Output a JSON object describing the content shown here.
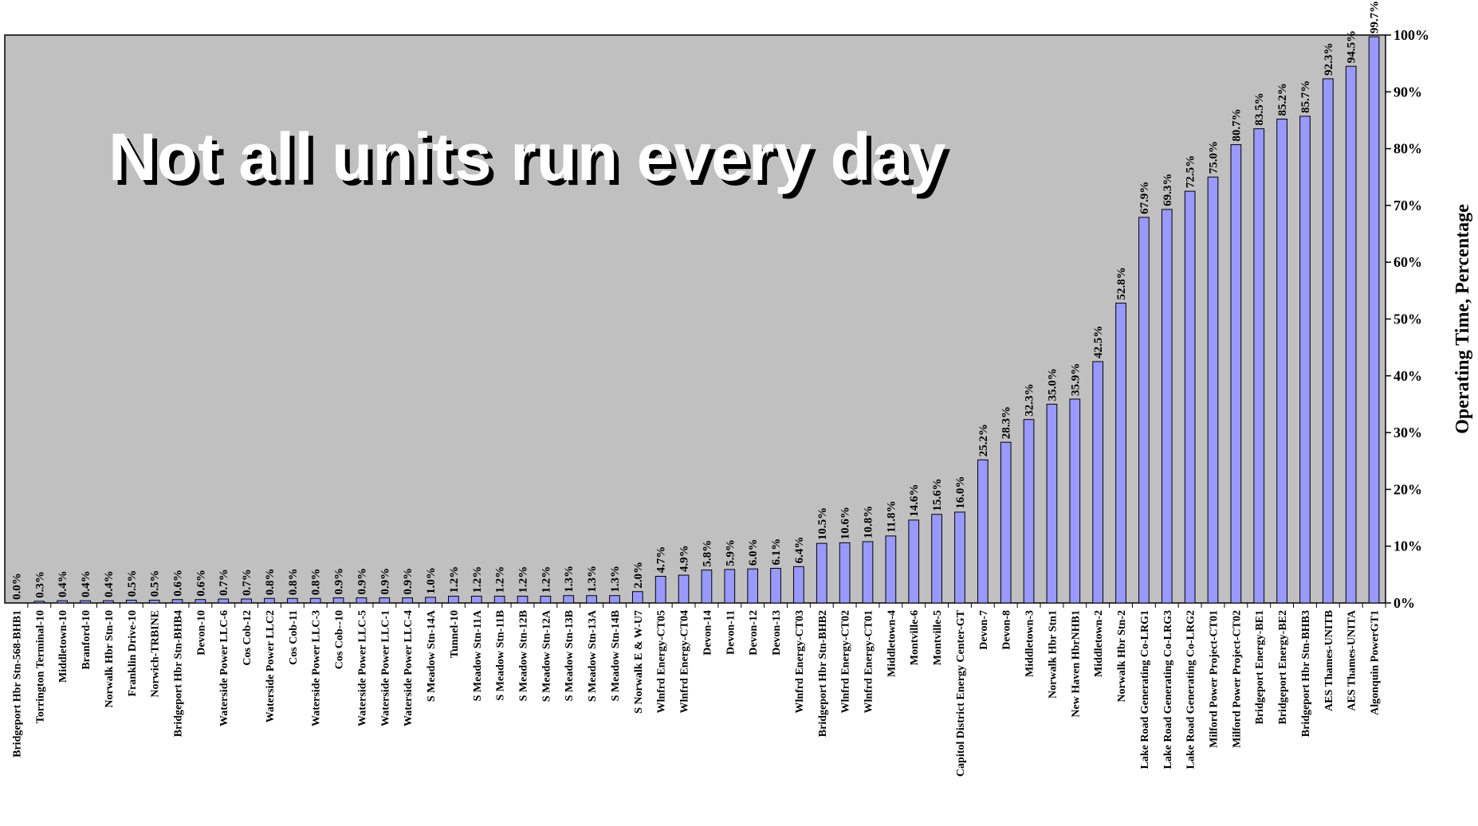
{
  "chart_data": {
    "type": "bar",
    "title": "Not all units run every day",
    "y_axis_label": "Operating Time, Percentage",
    "color": "#9999ff",
    "background": "#c0c0c0",
    "categories": [
      "Bridgeport Hbr Stn-568-BHB1",
      "Torrington Terminal-10",
      "Middletown-10",
      "Branford-10",
      "Norwalk Hbr Stn-10",
      "Franklin Drive-10",
      "Norwich-TRBINE",
      "Bridgeport Hbr Stn-BHB4",
      "Devon-10",
      "Waterside Power LLC-6",
      "Cos Cob-12",
      "Waterside Power LLC2",
      "Cos Cob-11",
      "Waterside Power LLC-3",
      "Cos Cob--10",
      "Waterside Power LLC-5",
      "Waterside Power LLC-1",
      "Waterside Power LLC-4",
      "S Meadow Stn-14A",
      "Tunnel-10",
      "S Meadow Stn-11A",
      "S Meadow Stn-11B",
      "S Meadow Stn-12B",
      "S Meadow Stn-12A",
      "S Meadow Stn-13B",
      "S Meadow Stn-13A",
      "S Meadow Stn-14B",
      "S Norwalk E & W-U7",
      "Wlnfrd Energy-CT05",
      "Wlnfrd Energy-CT04",
      "Devon-14",
      "Devon-11",
      "Devon-12",
      "Devon-13",
      "Wlnfrd Energy-CT03",
      "Bridgeport Hbr Stn-BHB2",
      "Wlnfrd Energy-CT02",
      "Wlnfrd Energy-CT01",
      "Middletown-4",
      "Montville-6",
      "Montville-5",
      "Capitol District Energy Center-GT",
      "Devon-7",
      "Devon-8",
      "Middletown-3",
      "Norwalk Hbr Stn1",
      "New Haven HbrNHB1",
      "Middletown-2",
      "Norwalk Hbr Stn-2",
      "Lake Road Generating Co-LRG1",
      "Lake Road Generating Co-LRG3",
      "Lake Road Generating Co-LRG2",
      "Milford Power Project-CT01",
      "Milford Power Project-CT02",
      "Bridgeport Energy-BE1",
      "Bridgeport Energy-BE2",
      "Bridgeport Hbr Stn-BHB3",
      "AES Thames-UNITB",
      "AES Thames-UNITA",
      "Algonquin PowerGT1"
    ],
    "values": [
      0.0,
      0.3,
      0.4,
      0.4,
      0.4,
      0.5,
      0.5,
      0.6,
      0.6,
      0.7,
      0.7,
      0.8,
      0.8,
      0.8,
      0.9,
      0.9,
      0.9,
      0.9,
      1.0,
      1.2,
      1.2,
      1.2,
      1.2,
      1.2,
      1.3,
      1.3,
      1.3,
      2.0,
      4.7,
      4.9,
      5.8,
      5.9,
      6.0,
      6.1,
      6.4,
      10.5,
      10.6,
      10.8,
      11.8,
      14.6,
      15.6,
      16.0,
      25.2,
      28.3,
      32.3,
      35.0,
      35.9,
      42.5,
      52.8,
      67.9,
      69.3,
      72.5,
      75.0,
      80.7,
      83.5,
      85.2,
      85.7,
      92.3,
      94.5,
      99.7
    ],
    "value_labels": [
      "0.0%",
      "0.3%",
      "0.4%",
      "0.4%",
      "0.4%",
      "0.5%",
      "0.5%",
      "0.6%",
      "0.6%",
      "0.7%",
      "0.7%",
      "0.8%",
      "0.8%",
      "0.8%",
      "0.9%",
      "0.9%",
      "0.9%",
      "0.9%",
      "1.0%",
      "1.2%",
      "1.2%",
      "1.2%",
      "1.2%",
      "1.2%",
      "1.3%",
      "1.3%",
      "1.3%",
      "2.0%",
      "4.7%",
      "4.9%",
      "5.8%",
      "5.9%",
      "6.0%",
      "6.1%",
      "6.4%",
      "10.5%",
      "10.6%",
      "10.8%",
      "11.8%",
      "14.6%",
      "15.6%",
      "16.0%",
      "25.2%",
      "28.3%",
      "32.3%",
      "35.0%",
      "35.9%",
      "42.5%",
      "52.8%",
      "67.9%",
      "69.3%",
      "72.5%",
      "75.0%",
      "80.7%",
      "83.5%",
      "85.2%",
      "85.7%",
      "92.3%",
      "94.5%",
      "99.7%"
    ],
    "ylim": [
      0,
      100
    ],
    "yticks": [
      {
        "value": 0,
        "label": "0%"
      },
      {
        "value": 10,
        "label": "10%"
      },
      {
        "value": 20,
        "label": "20%"
      },
      {
        "value": 30,
        "label": "30%"
      },
      {
        "value": 40,
        "label": "40%"
      },
      {
        "value": 50,
        "label": "50%"
      },
      {
        "value": 60,
        "label": "60%"
      },
      {
        "value": 70,
        "label": "70%"
      },
      {
        "value": 80,
        "label": "80%"
      },
      {
        "value": 90,
        "label": "90%"
      },
      {
        "value": 100,
        "label": "100%"
      }
    ]
  }
}
